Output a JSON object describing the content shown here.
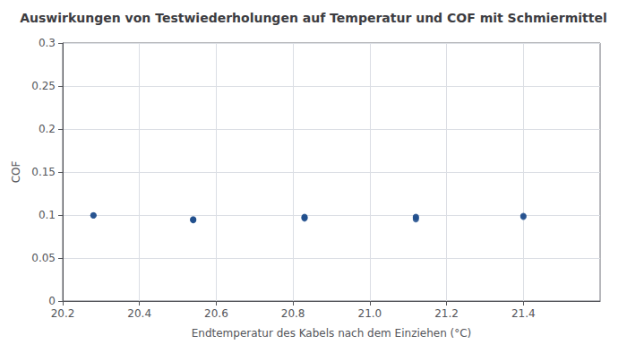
{
  "chart_data": {
    "type": "scatter",
    "title": "Auswirkungen von Testwiederholungen auf Temperatur und COF mit Schmiermittel",
    "xlabel": "Endtemperatur des Kabels nach dem Einziehen (°C)",
    "ylabel": "COF",
    "x": [
      20.28,
      20.28,
      20.54,
      20.54,
      20.54,
      20.83,
      20.83,
      20.83,
      21.12,
      21.12,
      21.12,
      21.4,
      21.4
    ],
    "values": [
      0.0997,
      0.0995,
      0.094,
      0.095,
      0.0945,
      0.096,
      0.097,
      0.098,
      0.095,
      0.097,
      0.098,
      0.098,
      0.099
    ],
    "color": "#1f4e8c",
    "xlim": [
      20.2,
      21.6
    ],
    "ylim": [
      0,
      0.3
    ],
    "xticks": [
      20.2,
      20.4,
      20.6,
      20.8,
      {
        "value": 21.0,
        "label": "21.0"
      },
      21.2,
      21.4
    ],
    "yticks": [
      0,
      0.05,
      0.1,
      0.15,
      0.2,
      0.25,
      0.3
    ],
    "grid": true
  }
}
